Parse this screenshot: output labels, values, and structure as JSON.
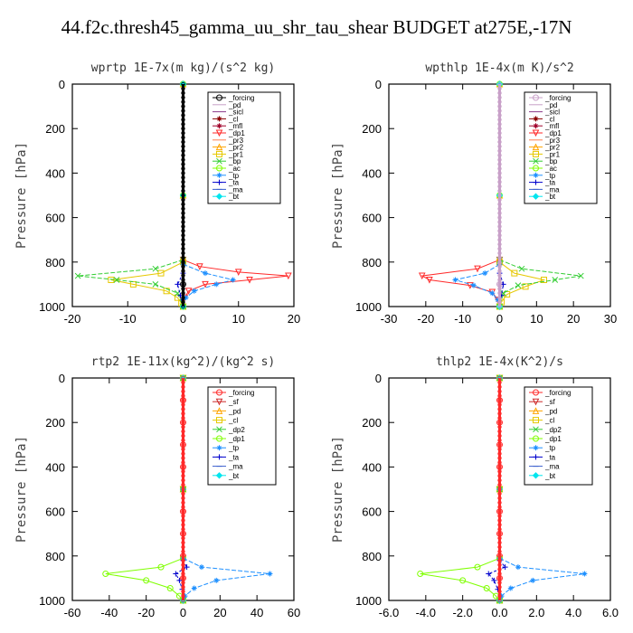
{
  "title": "44.f2c.thresh45_gamma_uu_shr_tau_shear  BUDGET at275E,-17N",
  "chart_data": [
    {
      "type": "line",
      "title": "wprtp  1E-7x(m kg)/(s^2 kg)",
      "ylabel": "Pressure [hPa]",
      "xlim": [
        -20,
        20
      ],
      "ylim": [
        1000,
        0
      ],
      "xticks": [
        "-20",
        "-10",
        "0",
        "10",
        "20"
      ],
      "yticks": [
        "0",
        "200",
        "400",
        "600",
        "800",
        "1000"
      ],
      "legend": [
        "_forcing",
        "_pd",
        "_sicl",
        "_cl",
        "_mfl",
        "_dp1",
        "_pr3",
        "_pr2",
        "_pr1",
        "_bp",
        "_ac",
        "_tp",
        "_ta",
        "_ma",
        "_bt"
      ],
      "series": [
        {
          "name": "_forcing",
          "color": "#000000",
          "marker": "circle",
          "p": [
            0,
            800,
            900,
            1000
          ],
          "x": [
            0,
            0,
            0,
            0
          ]
        },
        {
          "name": "_pd",
          "color": "#c8a0c8",
          "marker": "none",
          "p": [
            0,
            500,
            1000
          ],
          "x": [
            0,
            0,
            0
          ]
        },
        {
          "name": "_sicl",
          "color": "#8b3a8b",
          "marker": "none",
          "p": [
            0,
            500,
            1000
          ],
          "x": [
            0,
            0,
            0
          ]
        },
        {
          "name": "_cl",
          "color": "#8b0000",
          "marker": "star",
          "p": [
            0,
            500,
            1000
          ],
          "x": [
            0,
            0,
            0
          ]
        },
        {
          "name": "_mfl",
          "color": "#a0002a",
          "marker": "star",
          "p": [
            0,
            500,
            1000
          ],
          "x": [
            0,
            0,
            0
          ]
        },
        {
          "name": "_dp1",
          "color": "#ff2a2a",
          "marker": "tri-down",
          "p": [
            790,
            820,
            845,
            862,
            880,
            900,
            930,
            960,
            1000
          ],
          "x": [
            0,
            3,
            10,
            19,
            12,
            4,
            1,
            0.3,
            0
          ]
        },
        {
          "name": "_pr3",
          "color": "#ff7f50",
          "marker": "none",
          "p": [
            0,
            500,
            1000
          ],
          "x": [
            0,
            0,
            0
          ]
        },
        {
          "name": "_pr2",
          "color": "#ffa500",
          "marker": "tri-up",
          "p": [
            0,
            500,
            1000
          ],
          "x": [
            0,
            0,
            0
          ]
        },
        {
          "name": "_pr1",
          "color": "#e6c800",
          "marker": "square",
          "p": [
            800,
            850,
            880,
            900,
            930,
            960,
            985,
            1000
          ],
          "x": [
            0,
            -4,
            -13,
            -9,
            -3,
            -1,
            -0.3,
            0
          ]
        },
        {
          "name": "_bp",
          "color": "#32cd32",
          "marker": "x",
          "p": [
            790,
            830,
            862,
            880,
            900,
            940,
            1000
          ],
          "x": [
            0,
            -5,
            -19,
            -12,
            -5,
            -1,
            0
          ]
        },
        {
          "name": "_ac",
          "color": "#7fff00",
          "marker": "circle",
          "p": [
            0,
            500,
            1000
          ],
          "x": [
            0,
            0,
            0
          ]
        },
        {
          "name": "_tp",
          "color": "#1e90ff",
          "marker": "star",
          "p": [
            810,
            850,
            880,
            900,
            930,
            960,
            1000
          ],
          "x": [
            0,
            4,
            9,
            6,
            2,
            0.5,
            0
          ]
        },
        {
          "name": "_ta",
          "color": "#0000cd",
          "marker": "plus",
          "p": [
            850,
            900,
            950,
            1000
          ],
          "x": [
            0,
            -1,
            -0.5,
            0
          ]
        },
        {
          "name": "_ma",
          "color": "#3a5fcd",
          "marker": "dash",
          "p": [
            0,
            500,
            1000
          ],
          "x": [
            0,
            0,
            0
          ]
        },
        {
          "name": "_bt",
          "color": "#00e5ee",
          "marker": "diamond",
          "p": [
            0,
            500,
            1000
          ],
          "x": [
            0,
            0,
            0
          ]
        }
      ]
    },
    {
      "type": "line",
      "title": "wpthlp  1E-4x(m K)/s^2",
      "ylabel": "Pressure [hPa]",
      "xlim": [
        -30,
        30
      ],
      "ylim": [
        1000,
        0
      ],
      "xticks": [
        "-30",
        "-20",
        "-10",
        "0",
        "10",
        "20",
        "30"
      ],
      "yticks": [
        "0",
        "200",
        "400",
        "600",
        "800",
        "1000"
      ],
      "legend": [
        "_forcing",
        "_pd",
        "_sicl",
        "_cl",
        "_mfl",
        "_dp1",
        "_pr3",
        "_pr2",
        "_pr1",
        "_bp",
        "_ac",
        "_tp",
        "_ta",
        "_ma",
        "_bt"
      ],
      "series": [
        {
          "name": "_forcing",
          "color": "#c8a0c8",
          "marker": "circle",
          "p": [
            0,
            800,
            900,
            1000
          ],
          "x": [
            0,
            0,
            0,
            0
          ]
        },
        {
          "name": "_pd",
          "color": "#c8a0c8",
          "marker": "none",
          "p": [
            0,
            500,
            1000
          ],
          "x": [
            0,
            0,
            0
          ]
        },
        {
          "name": "_sicl",
          "color": "#8b3a8b",
          "marker": "none",
          "p": [
            0,
            500,
            1000
          ],
          "x": [
            0,
            0,
            0
          ]
        },
        {
          "name": "_cl",
          "color": "#8b0000",
          "marker": "star",
          "p": [
            0,
            500,
            1000
          ],
          "x": [
            0,
            0,
            0
          ]
        },
        {
          "name": "_mfl",
          "color": "#a0002a",
          "marker": "star",
          "p": [
            0,
            500,
            1000
          ],
          "x": [
            0,
            0,
            0
          ]
        },
        {
          "name": "_dp1",
          "color": "#ff2a2a",
          "marker": "tri-down",
          "p": [
            790,
            830,
            862,
            880,
            905,
            935,
            970,
            1000
          ],
          "x": [
            0,
            -6,
            -21,
            -19,
            -8,
            -2,
            -0.5,
            0
          ]
        },
        {
          "name": "_pr3",
          "color": "#ff7f50",
          "marker": "none",
          "p": [
            0,
            500,
            1000
          ],
          "x": [
            0,
            0,
            0
          ]
        },
        {
          "name": "_pr2",
          "color": "#ffa500",
          "marker": "tri-up",
          "p": [
            0,
            500,
            1000
          ],
          "x": [
            0,
            0,
            0
          ]
        },
        {
          "name": "_pr1",
          "color": "#e6c800",
          "marker": "square",
          "p": [
            800,
            850,
            880,
            910,
            945,
            980,
            1000
          ],
          "x": [
            0,
            4,
            12,
            7,
            2,
            0.5,
            0
          ]
        },
        {
          "name": "_bp",
          "color": "#32cd32",
          "marker": "x",
          "p": [
            790,
            830,
            862,
            880,
            905,
            940,
            1000
          ],
          "x": [
            0,
            6,
            22,
            15,
            5,
            1,
            0
          ]
        },
        {
          "name": "_ac",
          "color": "#7fff00",
          "marker": "circle",
          "p": [
            0,
            500,
            1000
          ],
          "x": [
            0,
            0,
            0
          ]
        },
        {
          "name": "_tp",
          "color": "#1e90ff",
          "marker": "star",
          "p": [
            810,
            850,
            880,
            905,
            940,
            970,
            1000
          ],
          "x": [
            0,
            -4,
            -12,
            -7,
            -2,
            -0.5,
            0
          ]
        },
        {
          "name": "_ta",
          "color": "#0000cd",
          "marker": "plus",
          "p": [
            850,
            900,
            950,
            1000
          ],
          "x": [
            0,
            1,
            0.5,
            0
          ]
        },
        {
          "name": "_ma",
          "color": "#3a5fcd",
          "marker": "dash",
          "p": [
            0,
            500,
            1000
          ],
          "x": [
            0,
            0,
            0
          ]
        },
        {
          "name": "_bt",
          "color": "#00e5ee",
          "marker": "diamond",
          "p": [
            0,
            500,
            1000
          ],
          "x": [
            0,
            0,
            0
          ]
        }
      ]
    },
    {
      "type": "line",
      "title": "rtp2  1E-11x(kg^2)/(kg^2 s)",
      "ylabel": "Pressure [hPa]",
      "xlim": [
        -60,
        60
      ],
      "ylim": [
        1000,
        0
      ],
      "xticks": [
        "-60",
        "-40",
        "-20",
        "0",
        "20",
        "40",
        "60"
      ],
      "yticks": [
        "0",
        "200",
        "400",
        "600",
        "800",
        "1000"
      ],
      "legend": [
        "_forcing",
        "_sf",
        "_pd",
        "_cl",
        "_dp2",
        "_dp1",
        "_tp",
        "_ta",
        "_ma",
        "_bt"
      ],
      "series": [
        {
          "name": "_forcing",
          "color": "#ff2a2a",
          "marker": "circle",
          "p": [
            0,
            100,
            200,
            300,
            400,
            500,
            600,
            700,
            800,
            900,
            1000
          ],
          "x": [
            0,
            0,
            0,
            0,
            0,
            0,
            0,
            0,
            0,
            0,
            0
          ]
        },
        {
          "name": "_sf",
          "color": "#cd2a2a",
          "marker": "tri-down",
          "p": [
            0,
            500,
            1000
          ],
          "x": [
            0,
            0,
            0
          ]
        },
        {
          "name": "_pd",
          "color": "#ffa500",
          "marker": "tri-up",
          "p": [
            0,
            500,
            1000
          ],
          "x": [
            0,
            0,
            0
          ]
        },
        {
          "name": "_cl",
          "color": "#e6c800",
          "marker": "square",
          "p": [
            0,
            500,
            1000
          ],
          "x": [
            0,
            0,
            0
          ]
        },
        {
          "name": "_dp2",
          "color": "#32cd32",
          "marker": "x",
          "p": [
            0,
            500,
            1000
          ],
          "x": [
            0,
            0,
            0
          ]
        },
        {
          "name": "_dp1",
          "color": "#7fff00",
          "marker": "circle",
          "p": [
            810,
            850,
            880,
            910,
            945,
            980,
            1000
          ],
          "x": [
            0,
            -12,
            -42,
            -20,
            -7,
            -2,
            0
          ]
        },
        {
          "name": "_tp",
          "color": "#1e90ff",
          "marker": "star",
          "p": [
            810,
            850,
            880,
            910,
            945,
            980,
            1000
          ],
          "x": [
            0,
            10,
            47,
            18,
            6,
            1,
            0
          ]
        },
        {
          "name": "_ta",
          "color": "#0000cd",
          "marker": "plus",
          "p": [
            820,
            850,
            880,
            910,
            950,
            1000
          ],
          "x": [
            0,
            2,
            -4,
            -2,
            -0.5,
            0
          ]
        },
        {
          "name": "_ma",
          "color": "#3a5fcd",
          "marker": "dash",
          "p": [
            0,
            500,
            1000
          ],
          "x": [
            0,
            0,
            0
          ]
        },
        {
          "name": "_bt",
          "color": "#00e5ee",
          "marker": "diamond",
          "p": [
            0,
            500,
            1000
          ],
          "x": [
            0,
            0,
            0
          ]
        }
      ]
    },
    {
      "type": "line",
      "title": "thlp2  1E-4x(K^2)/s",
      "ylabel": "Pressure [hPa]",
      "xlim": [
        -6,
        6
      ],
      "ylim": [
        1000,
        0
      ],
      "xticks": [
        "-6.0",
        "-4.0",
        "-2.0",
        "0.0",
        "2.0",
        "4.0",
        "6.0"
      ],
      "yticks": [
        "0",
        "200",
        "400",
        "600",
        "800",
        "1000"
      ],
      "legend": [
        "_forcing",
        "_sf",
        "_pd",
        "_cl",
        "_dp2",
        "_dp1",
        "_tp",
        "_ta",
        "_ma",
        "_bt"
      ],
      "series": [
        {
          "name": "_forcing",
          "color": "#ff2a2a",
          "marker": "circle",
          "p": [
            0,
            100,
            200,
            300,
            400,
            500,
            600,
            700,
            800,
            900,
            1000
          ],
          "x": [
            0,
            0,
            0,
            0,
            0,
            0,
            0,
            0,
            0,
            0,
            0
          ]
        },
        {
          "name": "_sf",
          "color": "#cd2a2a",
          "marker": "tri-down",
          "p": [
            0,
            500,
            1000
          ],
          "x": [
            0,
            0,
            0
          ]
        },
        {
          "name": "_pd",
          "color": "#ffa500",
          "marker": "tri-up",
          "p": [
            0,
            500,
            1000
          ],
          "x": [
            0,
            0,
            0
          ]
        },
        {
          "name": "_cl",
          "color": "#e6c800",
          "marker": "square",
          "p": [
            0,
            500,
            1000
          ],
          "x": [
            0,
            0,
            0
          ]
        },
        {
          "name": "_dp2",
          "color": "#32cd32",
          "marker": "x",
          "p": [
            0,
            500,
            1000
          ],
          "x": [
            0,
            0,
            0
          ]
        },
        {
          "name": "_dp1",
          "color": "#7fff00",
          "marker": "circle",
          "p": [
            810,
            850,
            880,
            910,
            945,
            980,
            1000
          ],
          "x": [
            0,
            -1.2,
            -4.3,
            -2,
            -0.7,
            -0.2,
            0
          ]
        },
        {
          "name": "_tp",
          "color": "#1e90ff",
          "marker": "star",
          "p": [
            810,
            850,
            880,
            910,
            945,
            980,
            1000
          ],
          "x": [
            0,
            1,
            4.6,
            1.8,
            0.6,
            0.1,
            0
          ]
        },
        {
          "name": "_ta",
          "color": "#0000cd",
          "marker": "plus",
          "p": [
            820,
            850,
            880,
            910,
            950,
            1000
          ],
          "x": [
            0,
            0.3,
            -0.6,
            -0.3,
            -0.1,
            0
          ]
        },
        {
          "name": "_ma",
          "color": "#3a5fcd",
          "marker": "dash",
          "p": [
            0,
            500,
            1000
          ],
          "x": [
            0,
            0,
            0
          ]
        },
        {
          "name": "_bt",
          "color": "#00e5ee",
          "marker": "diamond",
          "p": [
            0,
            500,
            1000
          ],
          "x": [
            0,
            0,
            0
          ]
        }
      ]
    }
  ]
}
